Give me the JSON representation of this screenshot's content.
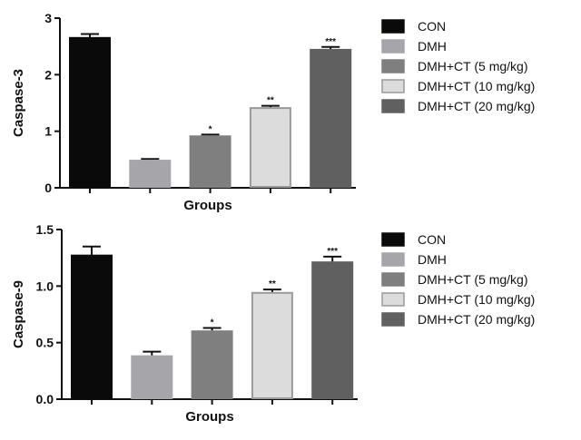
{
  "chart_data": [
    {
      "type": "bar",
      "xlabel": "Groups",
      "ylabel": "Caspase-3",
      "ylim": [
        0,
        3
      ],
      "yticks": [
        "0",
        "1",
        "2",
        "3"
      ],
      "categories": [
        "CON",
        "DMH",
        "DMH+CT (5 mg/kg)",
        "DMH+CT (10 mg/kg)",
        "DMH+CT (20 mg/kg)"
      ],
      "values": [
        2.65,
        0.48,
        0.91,
        1.41,
        2.44
      ],
      "errors": [
        0.07,
        0.03,
        0.03,
        0.04,
        0.05
      ],
      "significance": [
        "",
        "",
        "*",
        "**",
        "***"
      ],
      "legend": [
        "CON",
        "DMH",
        "DMH+CT (5 mg/kg)",
        "DMH+CT (10 mg/kg)",
        "DMH+CT (20 mg/kg)"
      ],
      "legend_position": "right",
      "grid": false
    },
    {
      "type": "bar",
      "xlabel": "Groups",
      "ylabel": "Caspase-9",
      "ylim": [
        0,
        1.5
      ],
      "yticks": [
        "0.0",
        "0.5",
        "1.0",
        "1.5"
      ],
      "categories": [
        "CON",
        "DMH",
        "DMH+CT (5 mg/kg)",
        "DMH+CT (10 mg/kg)",
        "DMH+CT (20 mg/kg)"
      ],
      "values": [
        1.27,
        0.38,
        0.6,
        0.94,
        1.21
      ],
      "errors": [
        0.08,
        0.04,
        0.03,
        0.03,
        0.05
      ],
      "significance": [
        "",
        "",
        "*",
        "**",
        "***"
      ],
      "legend": [
        "CON",
        "DMH",
        "DMH+CT (5 mg/kg)",
        "DMH+CT (10 mg/kg)",
        "DMH+CT (20 mg/kg)"
      ],
      "legend_position": "right",
      "grid": false
    }
  ],
  "colors": {
    "fills": [
      "#0a0a0a",
      "#a6a6aa",
      "#7f7f7f",
      "#dcdcdc",
      "#606060"
    ],
    "strokes": [
      "#0a0a0a",
      "#a6a6aa",
      "#7f7f7f",
      "#9a9a9a",
      "#606060"
    ]
  }
}
